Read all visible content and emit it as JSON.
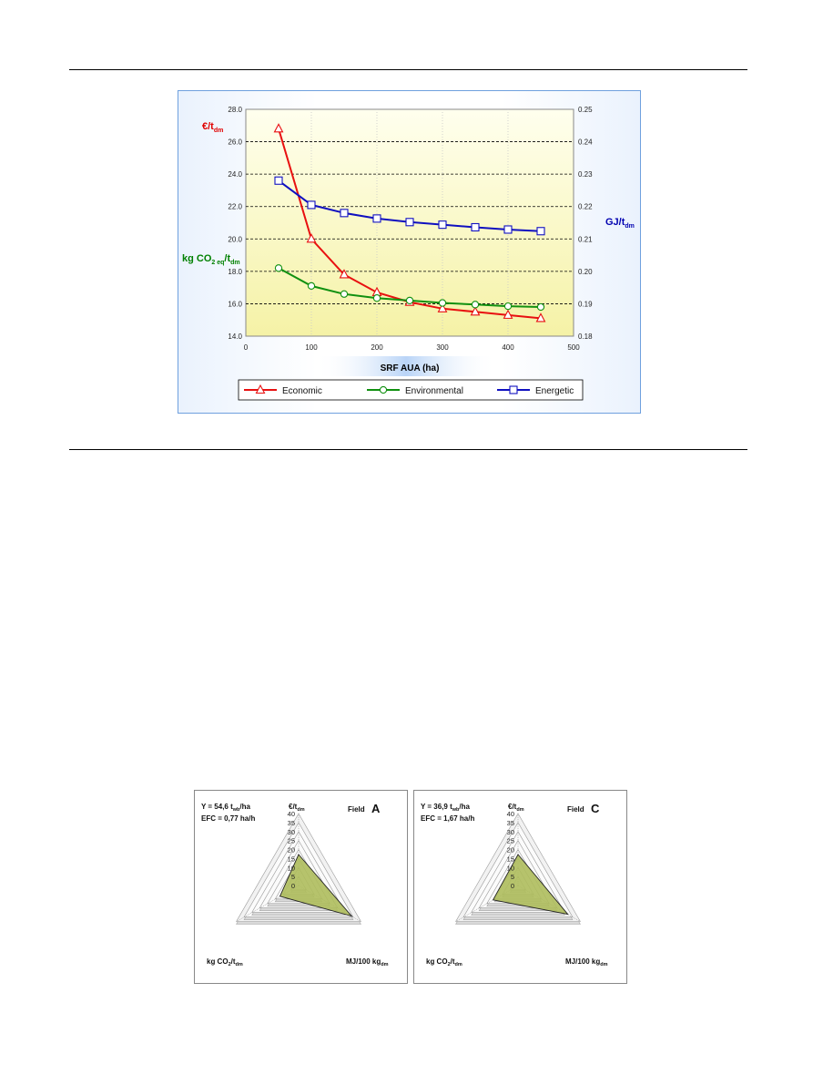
{
  "chart_data": [
    {
      "type": "line",
      "x": [
        50,
        100,
        150,
        200,
        250,
        300,
        350,
        400,
        450
      ],
      "xlabel": "SRF AUA (ha)",
      "xlim": [
        0,
        500
      ],
      "xticks": [
        "0",
        "100",
        "200",
        "300",
        "400",
        "500"
      ],
      "ylim_left": [
        14,
        28
      ],
      "yticks_left": [
        "14.0",
        "16.0",
        "18.0",
        "20.0",
        "22.0",
        "24.0",
        "26.0",
        "28.0"
      ],
      "ylim_right": [
        0.18,
        0.25
      ],
      "yticks_right": [
        "0.18",
        "0.19",
        "0.20",
        "0.21",
        "0.22",
        "0.23",
        "0.24",
        "0.25"
      ],
      "ylabel_left_top": {
        "main": "€/t",
        "sub": "dm",
        "color": "#e00000"
      },
      "ylabel_left_mid": {
        "main": "kg CO",
        "sub1": "2 eq",
        "mid": "/t",
        "sub2": "dm",
        "color": "#008000"
      },
      "ylabel_right": {
        "main": "GJ/t",
        "sub": "dm",
        "color": "#0000b0"
      },
      "series": [
        {
          "name": "Economic",
          "axis": "left",
          "color": "#e81010",
          "marker": "triangle",
          "values": [
            26.8,
            20.0,
            17.8,
            16.7,
            16.1,
            15.7,
            15.5,
            15.3,
            15.1
          ]
        },
        {
          "name": "Environmental",
          "axis": "left",
          "color": "#109010",
          "marker": "circle",
          "values": [
            18.2,
            17.1,
            16.6,
            16.35,
            16.2,
            16.05,
            15.95,
            15.85,
            15.8
          ]
        },
        {
          "name": "Energetic",
          "axis": "right",
          "color": "#1010c0",
          "marker": "square",
          "values": [
            0.228,
            0.2205,
            0.218,
            0.2163,
            0.2152,
            0.2144,
            0.2136,
            0.2129,
            0.2124
          ]
        }
      ],
      "grid": true,
      "legend": "bottom"
    },
    {
      "type": "radar",
      "panel": "A",
      "field_label": "Field",
      "letter": "A",
      "info_line1": {
        "main": "Y = 54,6 t",
        "sub": "wb",
        "tail": "/ha"
      },
      "info_line2": "EFC = 0,77 ha/h",
      "axes": [
        {
          "main": "€/t",
          "sub": "dm"
        },
        {
          "main": "MJ/100 kg",
          "sub": "dm"
        },
        {
          "main": "kg CO",
          "sub1": "2",
          "mid": "/t",
          "sub2": "dm"
        }
      ],
      "rticks": [
        "0",
        "5",
        "10",
        "15",
        "20",
        "25",
        "30",
        "35",
        "40"
      ],
      "rmax": 40,
      "values": [
        17.2,
        34.0,
        12.0
      ]
    },
    {
      "type": "radar",
      "panel": "C",
      "field_label": "Field",
      "letter": "C",
      "info_line1": {
        "main": "Y = 36,9 t",
        "sub": "wb",
        "tail": "/ha"
      },
      "info_line2": "EFC = 1,67 ha/h",
      "axes": [
        {
          "main": "€/t",
          "sub": "dm"
        },
        {
          "main": "MJ/100 kg",
          "sub": "dm"
        },
        {
          "main": "kg CO",
          "sub1": "2",
          "mid": "/t",
          "sub2": "dm"
        }
      ],
      "rticks": [
        "0",
        "5",
        "10",
        "15",
        "20",
        "25",
        "30",
        "35",
        "40"
      ],
      "rmax": 40,
      "values": [
        17.2,
        32.0,
        16.0
      ]
    }
  ]
}
